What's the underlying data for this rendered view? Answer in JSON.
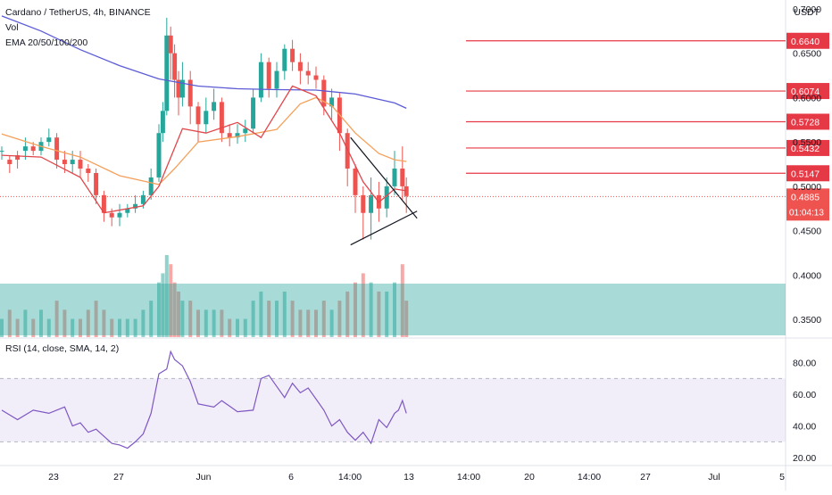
{
  "chart_data": [
    {
      "type": "candlestick",
      "title": "Cardano / TetherUS, 4h, BINANCE",
      "legend": [
        "Cardano / TetherUS, 4h, BINANCE",
        "Vol",
        "EMA 20/50/100/200"
      ],
      "unit_label": "USDT",
      "y_ticks": [
        "0.7000",
        "0.6500",
        "0.6000",
        "0.5500",
        "0.5000",
        "0.4500",
        "0.4000",
        "0.3500"
      ],
      "y_range": [
        0.33,
        0.71
      ],
      "x_tick_labels": [
        "23",
        "27",
        "Jun",
        "6",
        "14:00",
        "13",
        "14:00",
        "20",
        "14:00",
        "27",
        "Jul",
        "5"
      ],
      "current_price": 0.4885,
      "current_price_label": "0.4885",
      "countdown_label": "01:04:13",
      "price_levels": [
        0.664,
        0.6074,
        0.5728,
        0.5432,
        0.5147
      ],
      "price_level_labels": [
        "0.6640",
        "0.6074",
        "0.5728",
        "0.5432",
        "0.5147"
      ],
      "triangle_pattern": {
        "upper": [
          [
            0.444,
            0.555
          ],
          [
            0.515,
            0.472
          ]
        ],
        "lower": [
          [
            0.444,
            0.434
          ],
          [
            0.515,
            0.468
          ]
        ]
      },
      "series": [
        {
          "name": "EMA 200",
          "color": "#5b5bd6",
          "values": [
            [
              0,
              0.692
            ],
            [
              0.05,
              0.675
            ],
            [
              0.1,
              0.654
            ],
            [
              0.15,
              0.636
            ],
            [
              0.2,
              0.621
            ],
            [
              0.25,
              0.613
            ],
            [
              0.3,
              0.61
            ],
            [
              0.35,
              0.609
            ],
            [
              0.4,
              0.6085
            ],
            [
              0.45,
              0.604
            ],
            [
              0.5,
              0.594
            ],
            [
              0.515,
              0.588
            ]
          ]
        },
        {
          "name": "EMA 50",
          "color": "#f5a05a",
          "values": [
            [
              0,
              0.559
            ],
            [
              0.05,
              0.545
            ],
            [
              0.1,
              0.533
            ],
            [
              0.15,
              0.512
            ],
            [
              0.2,
              0.502
            ],
            [
              0.22,
              0.52
            ],
            [
              0.25,
              0.55
            ],
            [
              0.3,
              0.556
            ],
            [
              0.35,
              0.564
            ],
            [
              0.38,
              0.593
            ],
            [
              0.4,
              0.6
            ],
            [
              0.42,
              0.591
            ],
            [
              0.45,
              0.56
            ],
            [
              0.48,
              0.537
            ],
            [
              0.5,
              0.53
            ],
            [
              0.515,
              0.528
            ]
          ]
        },
        {
          "name": "EMA 20",
          "color": "#e0474c",
          "values": [
            [
              0,
              0.535
            ],
            [
              0.05,
              0.533
            ],
            [
              0.1,
              0.51
            ],
            [
              0.13,
              0.47
            ],
            [
              0.18,
              0.478
            ],
            [
              0.2,
              0.5
            ],
            [
              0.23,
              0.565
            ],
            [
              0.26,
              0.56
            ],
            [
              0.3,
              0.572
            ],
            [
              0.33,
              0.555
            ],
            [
              0.37,
              0.613
            ],
            [
              0.4,
              0.602
            ],
            [
              0.43,
              0.56
            ],
            [
              0.46,
              0.505
            ],
            [
              0.48,
              0.482
            ],
            [
              0.5,
              0.497
            ],
            [
              0.515,
              0.495
            ]
          ]
        }
      ],
      "candles": [
        [
          0.0,
          0.54,
          0.54,
          0.545,
          0.53
        ],
        [
          0.01,
          0.53,
          0.525,
          0.535,
          0.515
        ],
        [
          0.02,
          0.535,
          0.53,
          0.54,
          0.52
        ],
        [
          0.03,
          0.54,
          0.545,
          0.555,
          0.53
        ],
        [
          0.04,
          0.545,
          0.54,
          0.55,
          0.535
        ],
        [
          0.05,
          0.54,
          0.55,
          0.555,
          0.535
        ],
        [
          0.06,
          0.55,
          0.555,
          0.565,
          0.545
        ],
        [
          0.07,
          0.555,
          0.53,
          0.56,
          0.52
        ],
        [
          0.08,
          0.53,
          0.525,
          0.54,
          0.515
        ],
        [
          0.09,
          0.525,
          0.53,
          0.54,
          0.515
        ],
        [
          0.1,
          0.53,
          0.52,
          0.54,
          0.51
        ],
        [
          0.11,
          0.52,
          0.515,
          0.525,
          0.505
        ],
        [
          0.12,
          0.515,
          0.49,
          0.52,
          0.48
        ],
        [
          0.13,
          0.49,
          0.47,
          0.495,
          0.46
        ],
        [
          0.14,
          0.47,
          0.465,
          0.475,
          0.455
        ],
        [
          0.15,
          0.465,
          0.47,
          0.48,
          0.455
        ],
        [
          0.16,
          0.47,
          0.475,
          0.48,
          0.465
        ],
        [
          0.17,
          0.475,
          0.48,
          0.49,
          0.47
        ],
        [
          0.18,
          0.48,
          0.49,
          0.495,
          0.475
        ],
        [
          0.19,
          0.49,
          0.51,
          0.52,
          0.485
        ],
        [
          0.2,
          0.51,
          0.56,
          0.57,
          0.505
        ],
        [
          0.205,
          0.56,
          0.585,
          0.595,
          0.55
        ],
        [
          0.21,
          0.585,
          0.67,
          0.69,
          0.58
        ],
        [
          0.215,
          0.67,
          0.65,
          0.68,
          0.62
        ],
        [
          0.22,
          0.65,
          0.62,
          0.66,
          0.6
        ],
        [
          0.225,
          0.62,
          0.6,
          0.63,
          0.58
        ],
        [
          0.23,
          0.6,
          0.62,
          0.64,
          0.59
        ],
        [
          0.24,
          0.62,
          0.59,
          0.63,
          0.57
        ],
        [
          0.25,
          0.59,
          0.57,
          0.595,
          0.55
        ],
        [
          0.26,
          0.57,
          0.585,
          0.6,
          0.56
        ],
        [
          0.27,
          0.585,
          0.595,
          0.61,
          0.575
        ],
        [
          0.28,
          0.595,
          0.56,
          0.6,
          0.55
        ],
        [
          0.29,
          0.56,
          0.555,
          0.57,
          0.545
        ],
        [
          0.3,
          0.555,
          0.56,
          0.57,
          0.548
        ],
        [
          0.31,
          0.56,
          0.565,
          0.575,
          0.55
        ],
        [
          0.32,
          0.565,
          0.6,
          0.61,
          0.56
        ],
        [
          0.33,
          0.6,
          0.64,
          0.65,
          0.595
        ],
        [
          0.34,
          0.64,
          0.61,
          0.645,
          0.6
        ],
        [
          0.35,
          0.61,
          0.63,
          0.64,
          0.6
        ],
        [
          0.36,
          0.63,
          0.655,
          0.66,
          0.62
        ],
        [
          0.37,
          0.655,
          0.64,
          0.665,
          0.63
        ],
        [
          0.38,
          0.64,
          0.63,
          0.65,
          0.615
        ],
        [
          0.39,
          0.63,
          0.625,
          0.64,
          0.615
        ],
        [
          0.4,
          0.625,
          0.62,
          0.635,
          0.61
        ],
        [
          0.41,
          0.62,
          0.59,
          0.625,
          0.58
        ],
        [
          0.42,
          0.59,
          0.6,
          0.61,
          0.575
        ],
        [
          0.43,
          0.6,
          0.56,
          0.605,
          0.54
        ],
        [
          0.44,
          0.56,
          0.52,
          0.565,
          0.5
        ],
        [
          0.45,
          0.52,
          0.49,
          0.525,
          0.47
        ],
        [
          0.46,
          0.49,
          0.47,
          0.5,
          0.44
        ],
        [
          0.47,
          0.47,
          0.49,
          0.51,
          0.44
        ],
        [
          0.48,
          0.49,
          0.475,
          0.505,
          0.46
        ],
        [
          0.49,
          0.475,
          0.5,
          0.51,
          0.465
        ],
        [
          0.5,
          0.5,
          0.52,
          0.54,
          0.49
        ],
        [
          0.51,
          0.52,
          0.5,
          0.545,
          0.485
        ],
        [
          0.515,
          0.5,
          0.489,
          0.51,
          0.47
        ]
      ]
    },
    {
      "type": "bar",
      "name": "Vol",
      "values": [
        [
          0.0,
          2
        ],
        [
          0.01,
          3
        ],
        [
          0.02,
          2
        ],
        [
          0.03,
          3
        ],
        [
          0.04,
          2
        ],
        [
          0.05,
          3
        ],
        [
          0.06,
          2
        ],
        [
          0.07,
          4
        ],
        [
          0.08,
          3
        ],
        [
          0.09,
          2
        ],
        [
          0.1,
          2
        ],
        [
          0.11,
          3
        ],
        [
          0.12,
          4
        ],
        [
          0.13,
          3
        ],
        [
          0.14,
          2
        ],
        [
          0.15,
          2
        ],
        [
          0.16,
          2
        ],
        [
          0.17,
          2
        ],
        [
          0.18,
          3
        ],
        [
          0.19,
          4
        ],
        [
          0.2,
          6
        ],
        [
          0.205,
          7
        ],
        [
          0.21,
          9
        ],
        [
          0.215,
          8
        ],
        [
          0.22,
          6
        ],
        [
          0.225,
          5
        ],
        [
          0.23,
          4
        ],
        [
          0.24,
          4
        ],
        [
          0.25,
          3
        ],
        [
          0.26,
          3
        ],
        [
          0.27,
          3
        ],
        [
          0.28,
          3
        ],
        [
          0.29,
          2
        ],
        [
          0.3,
          2
        ],
        [
          0.31,
          2
        ],
        [
          0.32,
          4
        ],
        [
          0.33,
          5
        ],
        [
          0.34,
          4
        ],
        [
          0.35,
          4
        ],
        [
          0.36,
          5
        ],
        [
          0.37,
          4
        ],
        [
          0.38,
          3
        ],
        [
          0.39,
          3
        ],
        [
          0.4,
          3
        ],
        [
          0.41,
          4
        ],
        [
          0.42,
          3
        ],
        [
          0.43,
          4
        ],
        [
          0.44,
          5
        ],
        [
          0.45,
          6
        ],
        [
          0.46,
          7
        ],
        [
          0.47,
          6
        ],
        [
          0.48,
          5
        ],
        [
          0.49,
          5
        ],
        [
          0.5,
          6
        ],
        [
          0.51,
          8
        ],
        [
          0.515,
          4
        ]
      ]
    },
    {
      "type": "line",
      "title": "RSI (14, close, SMA, 14, 2)",
      "y_ticks": [
        "80.00",
        "60.00",
        "40.00",
        "20.00"
      ],
      "y_range": [
        15,
        95
      ],
      "band": [
        30,
        70
      ],
      "series": [
        {
          "name": "RSI",
          "color": "#7e57c2",
          "values": [
            [
              0,
              50
            ],
            [
              0.02,
              44
            ],
            [
              0.04,
              50
            ],
            [
              0.06,
              48
            ],
            [
              0.08,
              52
            ],
            [
              0.09,
              40
            ],
            [
              0.1,
              42
            ],
            [
              0.11,
              36
            ],
            [
              0.12,
              38
            ],
            [
              0.14,
              29
            ],
            [
              0.15,
              28
            ],
            [
              0.16,
              26
            ],
            [
              0.17,
              30
            ],
            [
              0.18,
              35
            ],
            [
              0.19,
              48
            ],
            [
              0.2,
              73
            ],
            [
              0.21,
              76
            ],
            [
              0.215,
              87
            ],
            [
              0.22,
              82
            ],
            [
              0.23,
              78
            ],
            [
              0.24,
              68
            ],
            [
              0.25,
              54
            ],
            [
              0.27,
              52
            ],
            [
              0.28,
              56
            ],
            [
              0.3,
              49
            ],
            [
              0.32,
              50
            ],
            [
              0.33,
              70
            ],
            [
              0.34,
              72
            ],
            [
              0.35,
              65
            ],
            [
              0.36,
              58
            ],
            [
              0.37,
              67
            ],
            [
              0.38,
              61
            ],
            [
              0.39,
              64
            ],
            [
              0.4,
              57
            ],
            [
              0.41,
              50
            ],
            [
              0.42,
              40
            ],
            [
              0.43,
              44
            ],
            [
              0.44,
              36
            ],
            [
              0.45,
              31
            ],
            [
              0.46,
              36
            ],
            [
              0.47,
              29
            ],
            [
              0.48,
              44
            ],
            [
              0.49,
              39
            ],
            [
              0.5,
              48
            ],
            [
              0.505,
              50
            ],
            [
              0.51,
              56
            ],
            [
              0.515,
              48
            ]
          ]
        }
      ]
    }
  ]
}
